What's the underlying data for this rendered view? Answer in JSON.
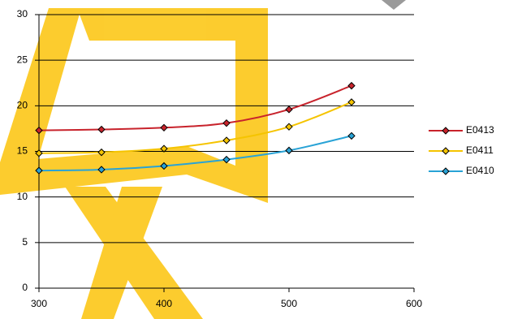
{
  "chart_data": {
    "type": "line",
    "x": [
      300,
      350,
      400,
      450,
      500,
      550
    ],
    "series": [
      {
        "name": "E0413",
        "color": "#c8232c",
        "values": [
          17.3,
          17.4,
          17.6,
          18.1,
          19.6,
          22.2
        ]
      },
      {
        "name": "E0411",
        "color": "#f5c400",
        "values": [
          14.8,
          14.9,
          15.3,
          16.2,
          17.7,
          20.4
        ]
      },
      {
        "name": "E0410",
        "color": "#29a3d6",
        "values": [
          12.9,
          13.0,
          13.4,
          14.1,
          15.1,
          16.7
        ]
      }
    ],
    "xlim": [
      300,
      600
    ],
    "xticks": [
      300,
      400,
      500,
      600
    ],
    "ylim": [
      0,
      30
    ],
    "yticks": [
      0,
      5,
      10,
      15,
      20,
      25,
      30
    ],
    "grid": true,
    "legend": "right"
  }
}
